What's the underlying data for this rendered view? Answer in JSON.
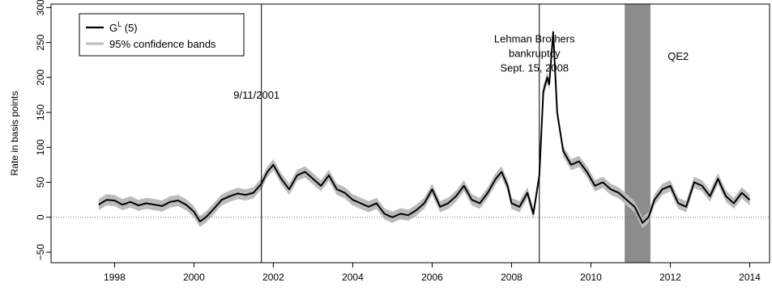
{
  "chart_data": {
    "type": "line",
    "title": "",
    "xlabel": "",
    "ylabel": "Rate in basis points",
    "xlim": [
      1996.4,
      2014.5
    ],
    "ylim": [
      -65,
      305
    ],
    "xticks": [
      1998,
      2000,
      2002,
      2004,
      2006,
      2008,
      2010,
      2012,
      2014
    ],
    "yticks": [
      -50,
      0,
      50,
      100,
      150,
      200,
      250,
      300
    ],
    "grid": false,
    "legend": {
      "placement": "top-left",
      "entries": [
        {
          "label_main": "G",
          "label_sup": "L",
          "label_rest": " (5)",
          "color": "#000000"
        },
        {
          "label": "95% confidence bands",
          "color": "#bbbbbb"
        }
      ]
    },
    "zero_line": {
      "y": 0,
      "style": "dotted"
    },
    "annotations": [
      {
        "x": 2001.7,
        "lines": [
          "9/11/2001"
        ],
        "label_y": 170
      },
      {
        "x": 2008.7,
        "lines": [
          "Lehman Brothers",
          "bankruptcy",
          "Sept. 15, 2008"
        ],
        "label_y": 250
      }
    ],
    "shaded_regions": [
      {
        "x0": 2010.85,
        "x1": 2011.5,
        "label": "QE2",
        "label_x": 2012.2,
        "label_y": 225,
        "color": "#8c8c8c"
      }
    ],
    "series": [
      {
        "name": "G^L (5)",
        "color": "#000000",
        "band_color": "#bbbbbb",
        "band_halfwidth": 8,
        "x": [
          1997.6,
          1997.8,
          1998.0,
          1998.2,
          1998.4,
          1998.6,
          1998.8,
          1999.0,
          1999.2,
          1999.4,
          1999.6,
          1999.8,
          2000.0,
          2000.15,
          2000.3,
          2000.5,
          2000.7,
          2000.9,
          2001.1,
          2001.3,
          2001.5,
          2001.7,
          2001.85,
          2002.0,
          2002.2,
          2002.4,
          2002.6,
          2002.8,
          2003.0,
          2003.2,
          2003.4,
          2003.6,
          2003.8,
          2004.0,
          2004.2,
          2004.4,
          2004.6,
          2004.8,
          2005.0,
          2005.2,
          2005.4,
          2005.6,
          2005.8,
          2006.0,
          2006.2,
          2006.4,
          2006.6,
          2006.8,
          2007.0,
          2007.2,
          2007.4,
          2007.6,
          2007.75,
          2007.9,
          2008.0,
          2008.2,
          2008.4,
          2008.55,
          2008.7,
          2008.8,
          2008.9,
          2008.95,
          2009.05,
          2009.15,
          2009.3,
          2009.5,
          2009.7,
          2009.9,
          2010.1,
          2010.3,
          2010.5,
          2010.7,
          2010.9,
          2011.1,
          2011.3,
          2011.45,
          2011.6,
          2011.8,
          2012.0,
          2012.2,
          2012.4,
          2012.6,
          2012.8,
          2013.0,
          2013.2,
          2013.4,
          2013.6,
          2013.8,
          2014.0
        ],
        "y": [
          18,
          25,
          24,
          18,
          22,
          17,
          20,
          18,
          16,
          22,
          24,
          18,
          8,
          -6,
          0,
          12,
          25,
          30,
          34,
          32,
          35,
          48,
          65,
          75,
          55,
          40,
          60,
          65,
          55,
          45,
          60,
          40,
          35,
          25,
          20,
          15,
          20,
          5,
          0,
          5,
          3,
          10,
          20,
          40,
          15,
          20,
          30,
          45,
          25,
          20,
          35,
          55,
          65,
          45,
          20,
          15,
          35,
          5,
          60,
          180,
          200,
          190,
          265,
          150,
          95,
          75,
          80,
          65,
          45,
          50,
          40,
          35,
          25,
          15,
          -8,
          0,
          25,
          40,
          45,
          20,
          15,
          50,
          45,
          30,
          55,
          30,
          20,
          35,
          25
        ]
      }
    ]
  }
}
